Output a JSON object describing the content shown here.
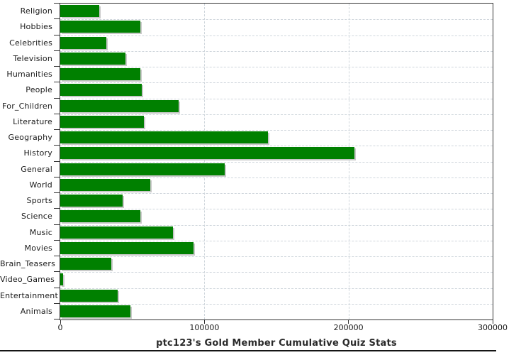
{
  "chart_data": {
    "type": "bar",
    "orientation": "horizontal",
    "title": "ptc123's Gold Member Cumulative Quiz Stats",
    "categories": [
      "Religion",
      "Hobbies",
      "Celebrities",
      "Television",
      "Humanities",
      "People",
      "For_Children",
      "Literature",
      "Geography",
      "History",
      "General",
      "World",
      "Sports",
      "Science",
      "Music",
      "Movies",
      "Brain_Teasers",
      "Video_Games",
      "Entertainment",
      "Animals"
    ],
    "values": [
      27000,
      55500,
      32000,
      45000,
      55500,
      56500,
      82000,
      58000,
      144000,
      204000,
      114000,
      62500,
      43500,
      55500,
      78000,
      92500,
      35500,
      2000,
      40000,
      48500
    ],
    "xlabel": "",
    "ylabel": "",
    "xlim": [
      0,
      300000
    ],
    "x_ticks": [
      0,
      100000,
      200000,
      300000
    ],
    "x_tick_labels": [
      "0",
      "100000",
      "200000",
      "300000"
    ],
    "grid": "dashed-both-axes",
    "legend": "none",
    "colors": {
      "bar": "#008000",
      "bar_shadow": "#c9c9c9",
      "axis": "#333333",
      "grid": "#cfd6dc",
      "text": "#1a1a1a",
      "title_text": "#2a2a2a",
      "bottom_border": "#141414",
      "background": "#ffffff"
    }
  }
}
